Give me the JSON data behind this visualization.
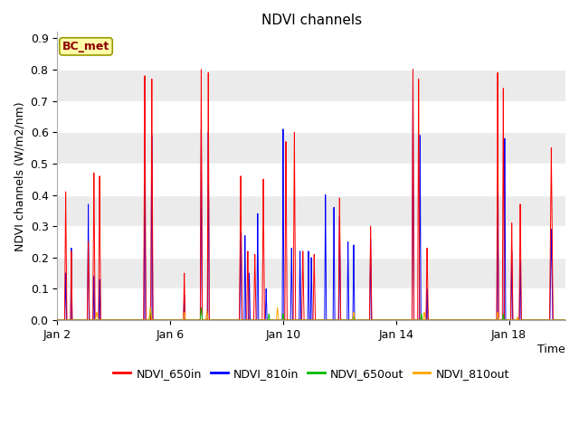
{
  "title": "NDVI channels",
  "xlabel": "Time",
  "ylabel": "NDVI channels (W/m2/nm)",
  "ylim": [
    0.0,
    0.92
  ],
  "yticks": [
    0.0,
    0.1,
    0.2,
    0.3,
    0.4,
    0.5,
    0.6,
    0.7,
    0.8,
    0.9
  ],
  "colors": {
    "NDVI_650in": "#ff0000",
    "NDVI_810in": "#0000ff",
    "NDVI_650out": "#00bb00",
    "NDVI_810out": "#ffa500"
  },
  "bg_color_light": "#f0f0f0",
  "bg_color_dark": "#e0e0e0",
  "legend_label": "BC_met",
  "xtick_labels": [
    "Jan 2",
    "Jan 6",
    "Jan 10",
    "Jan 14",
    "Jan 18"
  ],
  "xtick_positions": [
    2,
    6,
    10,
    14,
    18
  ],
  "xlim": [
    2,
    20
  ]
}
